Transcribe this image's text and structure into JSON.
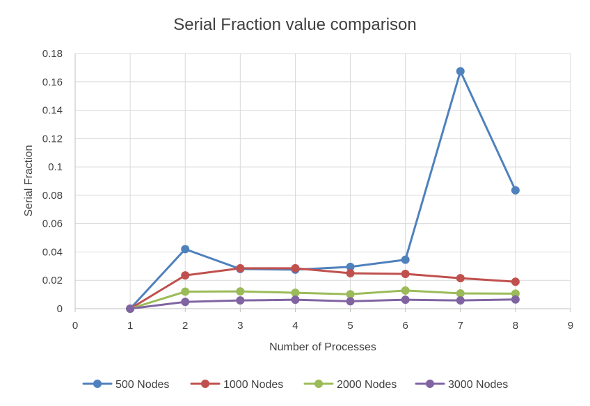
{
  "chart_data": {
    "type": "scatter",
    "title": "Serial Fraction value comparison",
    "xlabel": "Number of Processes",
    "ylabel": "Serial Fraction",
    "xlim": [
      0,
      9
    ],
    "ylim": [
      0,
      0.18
    ],
    "x_ticks": [
      0,
      1,
      2,
      3,
      4,
      5,
      6,
      7,
      8,
      9
    ],
    "y_ticks": [
      0,
      0.02,
      0.04,
      0.06,
      0.08,
      0.1,
      0.12,
      0.14,
      0.16,
      0.18
    ],
    "x_tick_labels": [
      "0",
      "1",
      "2",
      "3",
      "4",
      "5",
      "6",
      "7",
      "8",
      "9"
    ],
    "y_tick_labels": [
      "0",
      "0.02",
      "0.04",
      "0.06",
      "0.08",
      "0.1",
      "0.12",
      "0.14",
      "0.16",
      "0.18"
    ],
    "grid": true,
    "legend_position": "bottom",
    "x": [
      1,
      2,
      3,
      4,
      5,
      6,
      7,
      8
    ],
    "series": [
      {
        "name": "500 Nodes",
        "color": "#4f81bd",
        "values": [
          0,
          0.042,
          0.028,
          0.0275,
          0.0295,
          0.0345,
          0.1675,
          0.0835
        ]
      },
      {
        "name": "1000 Nodes",
        "color": "#c0504d",
        "values": [
          0,
          0.0235,
          0.0285,
          0.0285,
          0.025,
          0.0245,
          0.0215,
          0.019
        ]
      },
      {
        "name": "2000 Nodes",
        "color": "#9bbb59",
        "values": [
          0,
          0.012,
          0.0122,
          0.0112,
          0.0102,
          0.0128,
          0.0108,
          0.0106
        ]
      },
      {
        "name": "3000 Nodes",
        "color": "#8064a2",
        "values": [
          0,
          0.0048,
          0.0058,
          0.0063,
          0.0052,
          0.0063,
          0.0058,
          0.0065
        ]
      }
    ]
  }
}
